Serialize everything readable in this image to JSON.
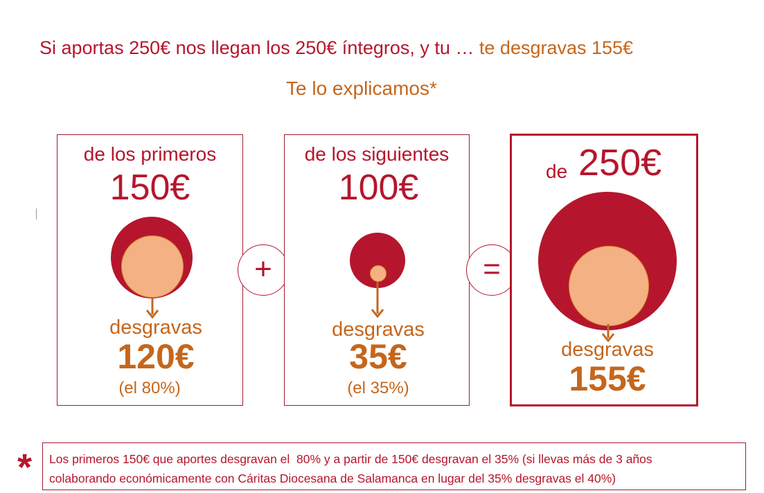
{
  "headline": {
    "part_a": "Si aportas 250€ nos llegan los 250€ íntegros, y tu … ",
    "part_b": "te desgravas 155€"
  },
  "subhead": "Te lo explicamos*",
  "panel1": {
    "label": "de los primeros",
    "amount": "150€",
    "desgravas": "desgravas",
    "result": "120€",
    "percent": "(el 80%)"
  },
  "operator_plus": "+",
  "panel2": {
    "label": "de los siguientes",
    "amount": "100€",
    "desgravas": "desgravas",
    "result": "35€",
    "percent": "(el 35%)"
  },
  "operator_equals": "=",
  "panel3": {
    "label": "de",
    "amount": "250€",
    "desgravas": "desgravas",
    "result": "155€"
  },
  "footnote": {
    "star": "*",
    "line1": "Los primeros 150€ que aportes desgravan el  80% y a partir de 150€ desgravan el 35% (si llevas más de 3 años",
    "line2": "colaborando económicamente con Cáritas Diocesana de Salamanca en lugar del 35% desgravas el 40%)"
  },
  "colors": {
    "brand_red": "#b5162d",
    "accent_orange": "#c5661c",
    "circle_fill": "#f4b183"
  }
}
